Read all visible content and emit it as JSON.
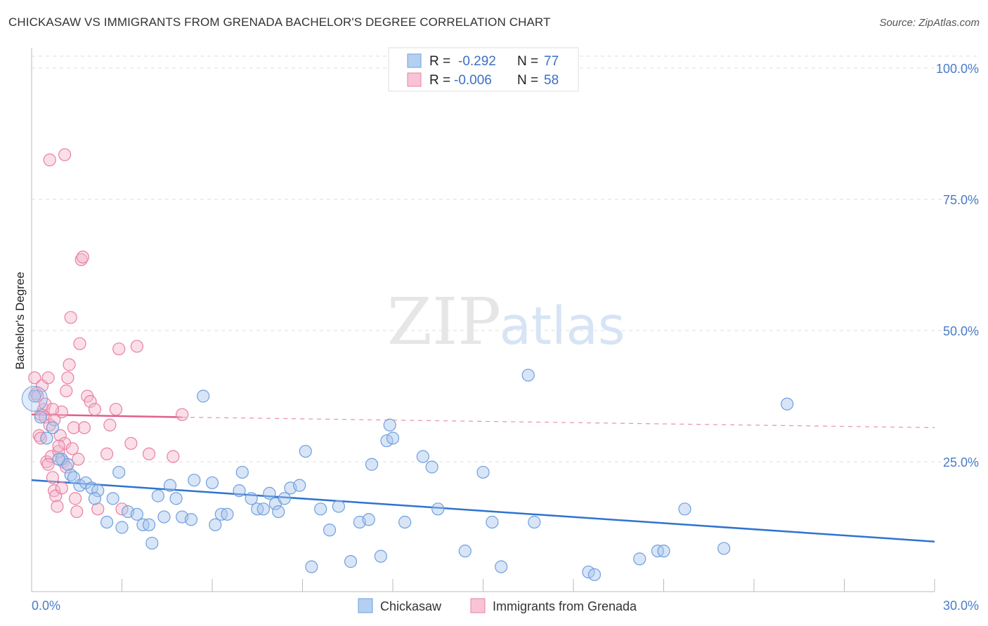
{
  "title": "CHICKASAW VS IMMIGRANTS FROM GRENADA BACHELOR'S DEGREE CORRELATION CHART",
  "source": "Source: ZipAtlas.com",
  "watermark": {
    "zip": "ZIP",
    "atlas": "atlas"
  },
  "colors": {
    "blue_fill": "#a9c6ee",
    "blue_stroke": "#6f9fde",
    "blue_line": "#2f73d0",
    "pink_fill": "#f5b9cc",
    "pink_stroke": "#e97fa3",
    "pink_line": "#e0608a",
    "tick_text": "#4a7cc9",
    "grid": "#dddddd"
  },
  "legend": {
    "rows": [
      {
        "r_label": "R =",
        "r_value": "-0.292",
        "n_label": "N =",
        "n_value": "77"
      },
      {
        "r_label": "R =",
        "r_value": "-0.006",
        "n_label": "N =",
        "n_value": "58"
      }
    ]
  },
  "chart_data": {
    "type": "scatter",
    "title": "CHICKASAW VS IMMIGRANTS FROM GRENADA BACHELOR'S DEGREE CORRELATION CHART",
    "xlabel": "",
    "ylabel": "Bachelor's Degree",
    "xlim": [
      0,
      30
    ],
    "ylim": [
      0,
      100
    ],
    "x_tick_labels": [
      "0.0%",
      "30.0%"
    ],
    "y_tick_labels": [
      "25.0%",
      "50.0%",
      "75.0%",
      "100.0%"
    ],
    "y_ticks": [
      25,
      50,
      75,
      100
    ],
    "series": [
      {
        "name": "Chickasaw",
        "color": "blue",
        "trend": {
          "x": [
            0,
            30
          ],
          "y": [
            21.5,
            9.8
          ],
          "dashed_extension": false
        },
        "points": [
          [
            0.1,
            37.5
          ],
          [
            0.3,
            33.5
          ],
          [
            0.5,
            29.5
          ],
          [
            0.7,
            31.5
          ],
          [
            1.0,
            25.5
          ],
          [
            1.2,
            24.5
          ],
          [
            1.3,
            22.5
          ],
          [
            1.6,
            20.5
          ],
          [
            1.8,
            21.0
          ],
          [
            2.0,
            20.0
          ],
          [
            2.2,
            19.5
          ],
          [
            2.1,
            18.0
          ],
          [
            2.5,
            13.5
          ],
          [
            2.7,
            18.0
          ],
          [
            2.9,
            23.0
          ],
          [
            3.0,
            12.5
          ],
          [
            3.2,
            15.5
          ],
          [
            3.5,
            15.0
          ],
          [
            3.7,
            13.0
          ],
          [
            3.9,
            13.0
          ],
          [
            4.0,
            9.5
          ],
          [
            4.2,
            18.5
          ],
          [
            4.4,
            14.5
          ],
          [
            4.6,
            20.5
          ],
          [
            4.8,
            18.0
          ],
          [
            5.0,
            14.5
          ],
          [
            5.3,
            14.0
          ],
          [
            5.4,
            21.5
          ],
          [
            5.7,
            37.5
          ],
          [
            6.0,
            21.0
          ],
          [
            6.1,
            13.0
          ],
          [
            6.3,
            15.0
          ],
          [
            6.5,
            15.0
          ],
          [
            6.9,
            19.5
          ],
          [
            7.0,
            23.0
          ],
          [
            7.3,
            18.0
          ],
          [
            7.5,
            16.0
          ],
          [
            7.7,
            16.0
          ],
          [
            7.9,
            19.0
          ],
          [
            8.1,
            17.0
          ],
          [
            8.4,
            18.0
          ],
          [
            8.2,
            15.5
          ],
          [
            8.6,
            20.0
          ],
          [
            8.9,
            20.5
          ],
          [
            9.1,
            27.0
          ],
          [
            9.3,
            5.0
          ],
          [
            9.6,
            16.0
          ],
          [
            9.9,
            12.0
          ],
          [
            10.2,
            16.5
          ],
          [
            10.6,
            6.0
          ],
          [
            10.9,
            13.5
          ],
          [
            11.2,
            14.0
          ],
          [
            11.3,
            24.5
          ],
          [
            11.6,
            7.0
          ],
          [
            11.9,
            32.0
          ],
          [
            11.8,
            29.0
          ],
          [
            12.0,
            29.5
          ],
          [
            12.4,
            13.5
          ],
          [
            13.0,
            26.0
          ],
          [
            13.3,
            24.0
          ],
          [
            13.5,
            16.0
          ],
          [
            14.4,
            8.0
          ],
          [
            15.0,
            23.0
          ],
          [
            15.3,
            13.5
          ],
          [
            15.6,
            5.0
          ],
          [
            16.5,
            41.5
          ],
          [
            16.7,
            13.5
          ],
          [
            18.5,
            4.0
          ],
          [
            18.7,
            3.5
          ],
          [
            20.2,
            6.5
          ],
          [
            20.8,
            8.0
          ],
          [
            21.0,
            8.0
          ],
          [
            21.7,
            16.0
          ],
          [
            23.0,
            8.5
          ],
          [
            25.1,
            36.0
          ],
          [
            0.9,
            25.5
          ],
          [
            1.4,
            22.0
          ]
        ]
      },
      {
        "name": "Immigrants from Grenada",
        "color": "pink",
        "trend": {
          "x": [
            0,
            5
          ],
          "y": [
            34.0,
            33.5
          ],
          "dashed_extension": true,
          "dashed_to": [
            30,
            31.5
          ]
        },
        "points": [
          [
            0.1,
            41.0
          ],
          [
            0.15,
            38.0
          ],
          [
            0.2,
            37.5
          ],
          [
            0.25,
            30.0
          ],
          [
            0.3,
            34.0
          ],
          [
            0.35,
            39.5
          ],
          [
            0.4,
            35.0
          ],
          [
            0.45,
            33.5
          ],
          [
            0.5,
            25.0
          ],
          [
            0.55,
            41.0
          ],
          [
            0.6,
            32.0
          ],
          [
            0.65,
            26.0
          ],
          [
            0.7,
            22.0
          ],
          [
            0.75,
            19.5
          ],
          [
            0.8,
            18.5
          ],
          [
            0.85,
            16.5
          ],
          [
            0.9,
            27.0
          ],
          [
            0.95,
            30.0
          ],
          [
            1.0,
            34.5
          ],
          [
            1.05,
            25.0
          ],
          [
            1.1,
            28.5
          ],
          [
            1.15,
            24.0
          ],
          [
            1.2,
            41.0
          ],
          [
            1.25,
            43.5
          ],
          [
            1.3,
            52.5
          ],
          [
            1.35,
            27.5
          ],
          [
            1.4,
            31.5
          ],
          [
            1.45,
            18.0
          ],
          [
            1.5,
            15.5
          ],
          [
            1.55,
            25.5
          ],
          [
            1.6,
            47.5
          ],
          [
            1.65,
            63.5
          ],
          [
            1.7,
            64.0
          ],
          [
            1.75,
            31.5
          ],
          [
            1.85,
            37.5
          ],
          [
            1.95,
            36.5
          ],
          [
            2.1,
            35.0
          ],
          [
            2.2,
            16.0
          ],
          [
            2.5,
            26.5
          ],
          [
            2.6,
            32.0
          ],
          [
            2.8,
            35.0
          ],
          [
            2.9,
            46.5
          ],
          [
            3.0,
            16.0
          ],
          [
            3.3,
            28.5
          ],
          [
            3.5,
            47.0
          ],
          [
            3.9,
            26.5
          ],
          [
            4.7,
            26.0
          ],
          [
            5.0,
            34.0
          ],
          [
            0.6,
            82.5
          ],
          [
            1.1,
            83.5
          ],
          [
            0.3,
            29.5
          ],
          [
            0.45,
            36.0
          ],
          [
            0.7,
            35.0
          ],
          [
            0.9,
            28.0
          ],
          [
            1.0,
            20.0
          ],
          [
            0.55,
            24.5
          ],
          [
            0.75,
            33.0
          ],
          [
            1.15,
            38.5
          ]
        ]
      }
    ],
    "legend": [
      "Chickasaw",
      "Immigrants from Grenada"
    ]
  }
}
